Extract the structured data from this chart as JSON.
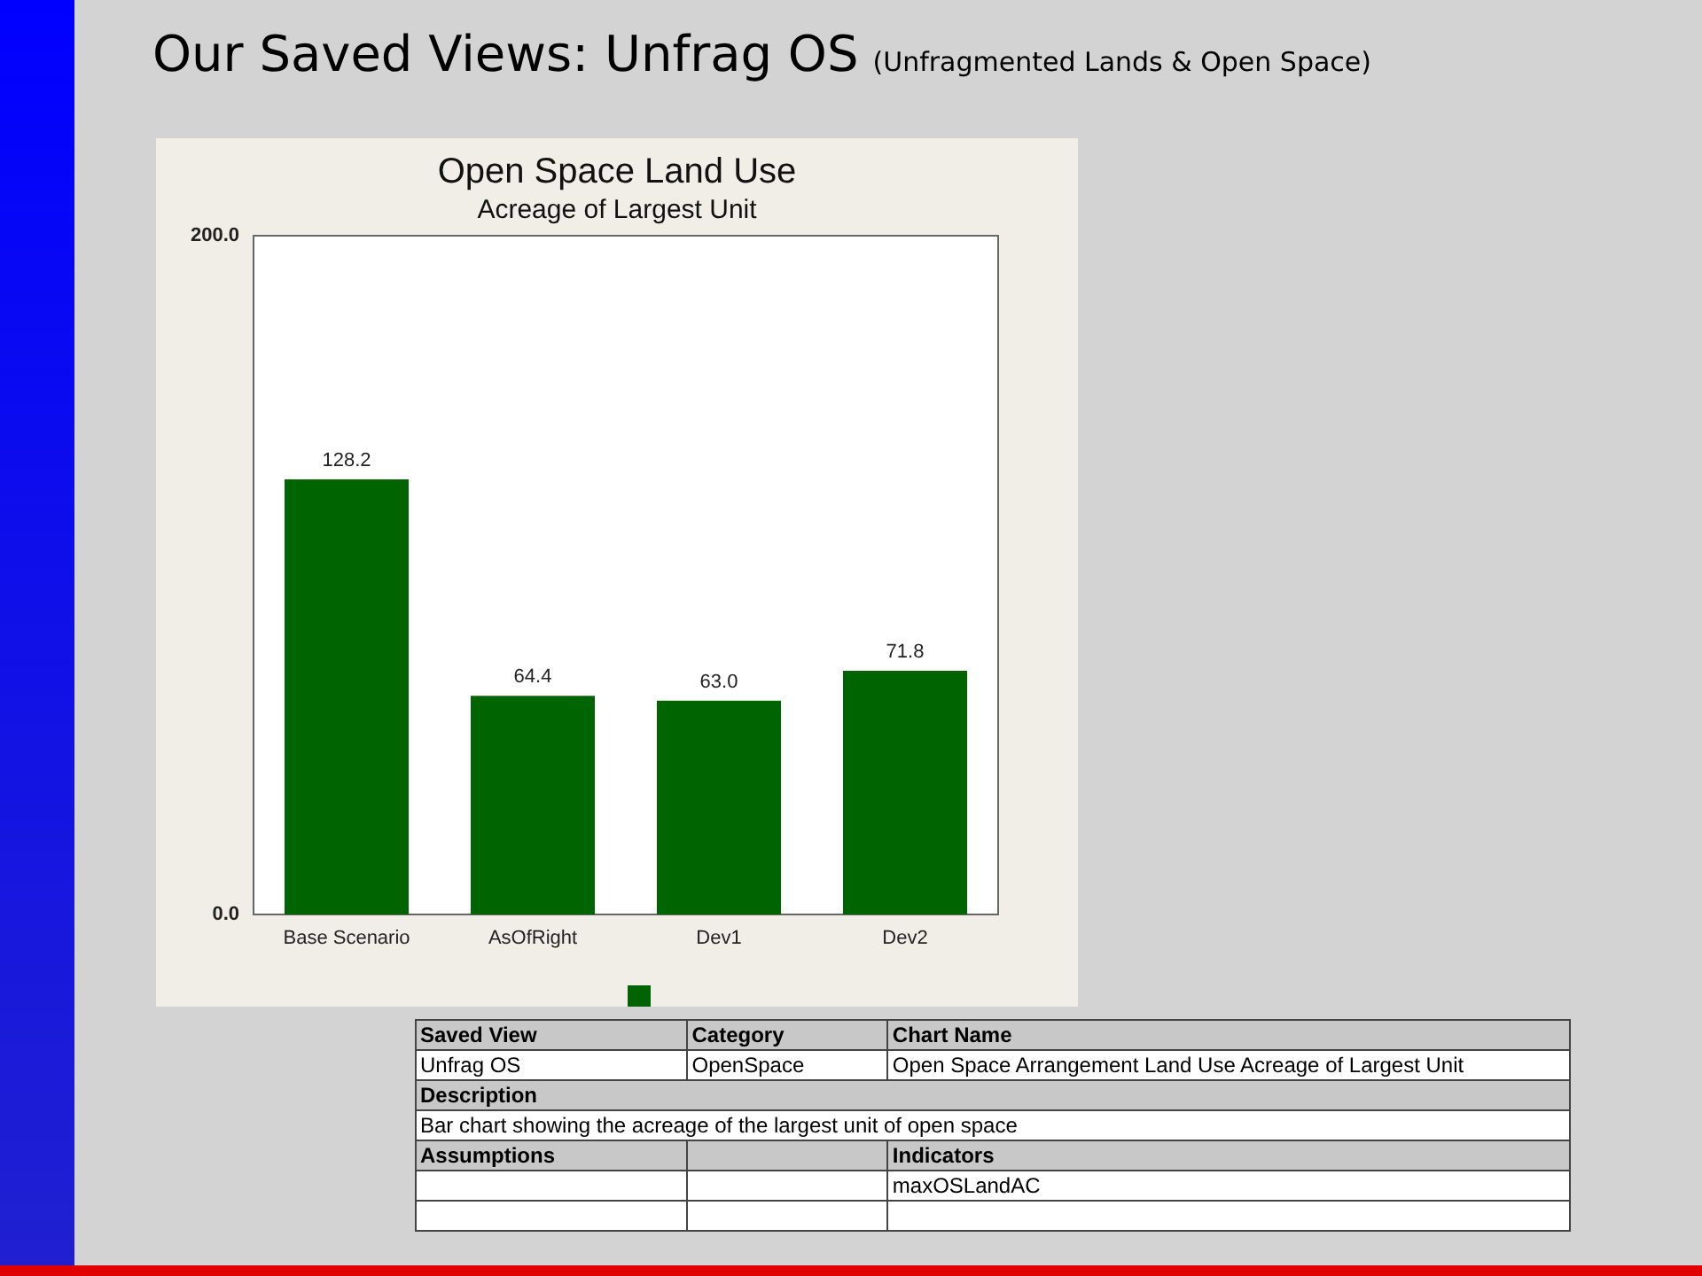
{
  "chart_data": [
    {
      "type": "other",
      "title": "Our Saved Views: Unfrag OS",
      "subtitle": "(Unfragmented Lands & Open Space)"
    },
    {
      "type": "bar",
      "title": "Open Space Land Use",
      "subtitle": "Acreage of Largest Unit",
      "categories": [
        "Base Scenario",
        "AsOfRight",
        "Dev1",
        "Dev2"
      ],
      "values": [
        128.2,
        64.4,
        63.0,
        71.8
      ],
      "value_labels": [
        "128.2",
        "64.4",
        "63.0",
        "71.8"
      ],
      "color": "#006400",
      "ylim": [
        0,
        200
      ],
      "yticks": [
        {
          "value": 0,
          "label": "0.0"
        },
        {
          "value": 200,
          "label": "200.0"
        }
      ],
      "grid": false
    },
    {
      "type": "other",
      "annotations": [
        "Saved View",
        "Category",
        "Chart Name",
        "Unfrag OS",
        "OpenSpace",
        "Open Space Arrangement Land Use Acreage of Largest Unit",
        "Description",
        "Bar chart showing the acreage of the largest unit of open space",
        "Assumptions",
        "Indicators",
        "maxOSLandAC"
      ]
    }
  ]
}
